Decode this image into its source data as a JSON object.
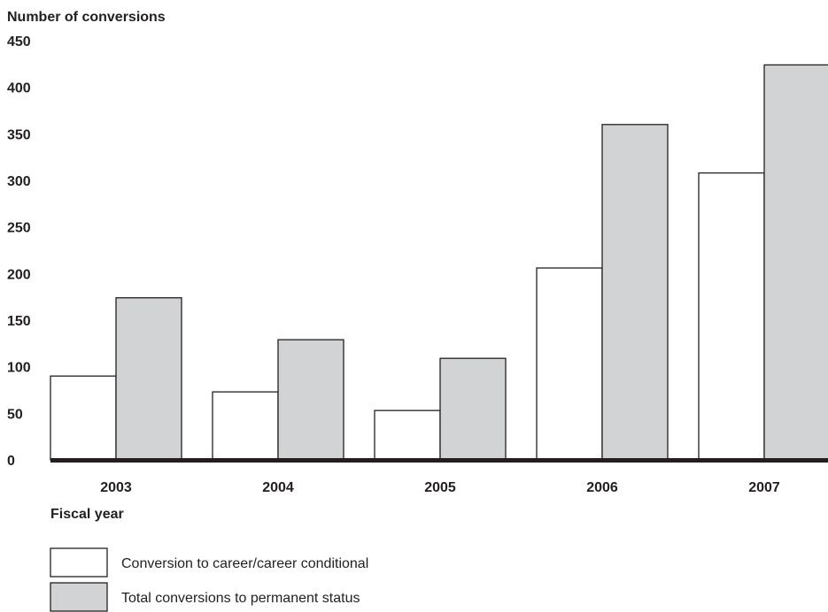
{
  "chart_data": {
    "type": "bar",
    "ylabel": "Number of conversions",
    "xlabel": "Fiscal year",
    "categories": [
      "2003",
      "2004",
      "2005",
      "2006",
      "2007"
    ],
    "ylim": [
      0,
      450
    ],
    "yticks": [
      0,
      50,
      100,
      150,
      200,
      250,
      300,
      350,
      400,
      450
    ],
    "grid": false,
    "legend_placement": "bottom-left",
    "series": [
      {
        "name": "Conversion to career/career conditional",
        "color": "#ffffff",
        "values": [
          90,
          73,
          53,
          206,
          308
        ]
      },
      {
        "name": "Total conversions to permanent status",
        "color": "#d1d3d4",
        "values": [
          174,
          129,
          109,
          360,
          424
        ]
      }
    ]
  }
}
